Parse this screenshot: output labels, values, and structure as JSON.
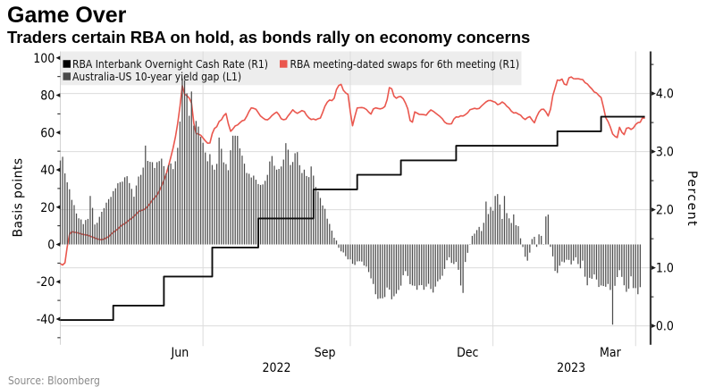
{
  "header": {
    "title": "Game Over",
    "subtitle": "Traders certain RBA on hold, as bonds rally on economy concerns"
  },
  "legend": {
    "items": [
      {
        "label": "RBA Interbank Overnight Cash Rate (R1)",
        "color": "#000000",
        "marker": "square"
      },
      {
        "label": "RBA meeting-dated swaps for 6th meeting (R1)",
        "color": "#ea574e",
        "marker": "square"
      },
      {
        "label": "Australia-US 10-year yield gap (L1)",
        "color": "#4a4a4a",
        "marker": "square"
      }
    ]
  },
  "source_note": "Source: Bloomberg",
  "chart_data": {
    "type": "mixed",
    "title": "Game Over",
    "subtitle": "Traders certain RBA on hold, as bonds rally on economy concerns",
    "x": {
      "dates": [
        "2022-04-01",
        "2022-04-04",
        "2022-04-05",
        "2022-04-06",
        "2022-04-07",
        "2022-04-08",
        "2022-04-11",
        "2022-04-12",
        "2022-04-13",
        "2022-04-14",
        "2022-04-15",
        "2022-04-18",
        "2022-04-19",
        "2022-04-20",
        "2022-04-21",
        "2022-04-22",
        "2022-04-25",
        "2022-04-26",
        "2022-04-27",
        "2022-04-28",
        "2022-04-29",
        "2022-05-02",
        "2022-05-03",
        "2022-05-04",
        "2022-05-05",
        "2022-05-06",
        "2022-05-09",
        "2022-05-10",
        "2022-05-11",
        "2022-05-12",
        "2022-05-13",
        "2022-05-16",
        "2022-05-17",
        "2022-05-18",
        "2022-05-19",
        "2022-05-20",
        "2022-05-23",
        "2022-05-24",
        "2022-05-25",
        "2022-05-26",
        "2022-05-27",
        "2022-05-30",
        "2022-05-31",
        "2022-06-01",
        "2022-06-02",
        "2022-06-03",
        "2022-06-06",
        "2022-06-07",
        "2022-06-08",
        "2022-06-09",
        "2022-06-10",
        "2022-06-13",
        "2022-06-14",
        "2022-06-15",
        "2022-06-16",
        "2022-06-17",
        "2022-06-20",
        "2022-06-21",
        "2022-06-22",
        "2022-06-23",
        "2022-06-24",
        "2022-06-27",
        "2022-06-28",
        "2022-06-29",
        "2022-06-30",
        "2022-07-01",
        "2022-07-04",
        "2022-07-05",
        "2022-07-06",
        "2022-07-07",
        "2022-07-08",
        "2022-07-11",
        "2022-07-12",
        "2022-07-13",
        "2022-07-14",
        "2022-07-15",
        "2022-07-18",
        "2022-07-19",
        "2022-07-20",
        "2022-07-21",
        "2022-07-22",
        "2022-07-25",
        "2022-07-26",
        "2022-07-27",
        "2022-07-28",
        "2022-07-29",
        "2022-08-01",
        "2022-08-02",
        "2022-08-03",
        "2022-08-04",
        "2022-08-05",
        "2022-08-08",
        "2022-08-09",
        "2022-08-10",
        "2022-08-11",
        "2022-08-12",
        "2022-08-15",
        "2022-08-16",
        "2022-08-17",
        "2022-08-18",
        "2022-08-19",
        "2022-08-22",
        "2022-08-23",
        "2022-08-24",
        "2022-08-25",
        "2022-08-26",
        "2022-08-29",
        "2022-08-30",
        "2022-08-31",
        "2022-09-01",
        "2022-09-02",
        "2022-09-05",
        "2022-09-06",
        "2022-09-07",
        "2022-09-08",
        "2022-09-09",
        "2022-09-12",
        "2022-09-13",
        "2022-09-14",
        "2022-09-15",
        "2022-09-16",
        "2022-09-19",
        "2022-09-20",
        "2022-09-21",
        "2022-09-22",
        "2022-09-23",
        "2022-09-26",
        "2022-09-27",
        "2022-09-28",
        "2022-09-29",
        "2022-09-30",
        "2022-10-03",
        "2022-10-04",
        "2022-10-05",
        "2022-10-06",
        "2022-10-07",
        "2022-10-10",
        "2022-10-11",
        "2022-10-12",
        "2022-10-13",
        "2022-10-14",
        "2022-10-17",
        "2022-10-18",
        "2022-10-19",
        "2022-10-20",
        "2022-10-21",
        "2022-10-24",
        "2022-10-25",
        "2022-10-26",
        "2022-10-27",
        "2022-10-28",
        "2022-10-31",
        "2022-11-01",
        "2022-11-02",
        "2022-11-03",
        "2022-11-04",
        "2022-11-07",
        "2022-11-08",
        "2022-11-09",
        "2022-11-10",
        "2022-11-11",
        "2022-11-14",
        "2022-11-15",
        "2022-11-16",
        "2022-11-17",
        "2022-11-18",
        "2022-11-21",
        "2022-11-22",
        "2022-11-23",
        "2022-11-24",
        "2022-11-25",
        "2022-11-28",
        "2022-11-29",
        "2022-11-30",
        "2022-12-01",
        "2022-12-02",
        "2022-12-05",
        "2022-12-06",
        "2022-12-07",
        "2022-12-08",
        "2022-12-09",
        "2022-12-12",
        "2022-12-13",
        "2022-12-14",
        "2022-12-15",
        "2022-12-16",
        "2022-12-19",
        "2022-12-20",
        "2022-12-21",
        "2022-12-22",
        "2022-12-23",
        "2022-12-26",
        "2022-12-27",
        "2022-12-28",
        "2022-12-29",
        "2022-12-30",
        "2023-01-02",
        "2023-01-03",
        "2023-01-04",
        "2023-01-05",
        "2023-01-06",
        "2023-01-09",
        "2023-01-10",
        "2023-01-11",
        "2023-01-12",
        "2023-01-13",
        "2023-01-16",
        "2023-01-17",
        "2023-01-18",
        "2023-01-19",
        "2023-01-20",
        "2023-01-23",
        "2023-01-24",
        "2023-01-25",
        "2023-01-26",
        "2023-01-27",
        "2023-01-30",
        "2023-01-31",
        "2023-02-01",
        "2023-02-02",
        "2023-02-03",
        "2023-02-06",
        "2023-02-07",
        "2023-02-08",
        "2023-02-09",
        "2023-02-10",
        "2023-02-13",
        "2023-02-14",
        "2023-02-15",
        "2023-02-16",
        "2023-02-17",
        "2023-02-20",
        "2023-02-21",
        "2023-02-22",
        "2023-02-23",
        "2023-02-24",
        "2023-02-27",
        "2023-02-28",
        "2023-03-01",
        "2023-03-02",
        "2023-03-03",
        "2023-03-06",
        "2023-03-07",
        "2023-03-08",
        "2023-03-09",
        "2023-03-10",
        "2023-03-13",
        "2023-03-14",
        "2023-03-15",
        "2023-03-16",
        "2023-03-17",
        "2023-03-20",
        "2023-03-21",
        "2023-03-22",
        "2023-03-23"
      ],
      "month_ticks": [
        {
          "label": "Jun",
          "index": 52
        },
        {
          "label": "Sep",
          "index": 115
        },
        {
          "label": "Dec",
          "index": 177
        },
        {
          "label": "Mar",
          "index": 239
        }
      ],
      "quarter_gridlines": [
        62,
        126,
        188,
        250
      ],
      "year_labels": [
        {
          "label": "2022",
          "index": 94
        },
        {
          "label": "2023",
          "index": 222
        }
      ]
    },
    "axis_left": {
      "title": "Basis points",
      "unit": "bps",
      "major_ticks": [
        100,
        80,
        60,
        40,
        20,
        0,
        -20,
        -40
      ],
      "minor_ticks": [
        90,
        70,
        50,
        30,
        10,
        -10,
        -30,
        -50
      ],
      "grid": false
    },
    "axis_right": {
      "title": "Percent",
      "unit": "%",
      "major_ticks": [
        4.0,
        3.0,
        2.0,
        1.0,
        0.0
      ],
      "tick_labels": [
        "4.0",
        "3.0",
        "2.0",
        "1.0",
        "0.0"
      ],
      "minor_ticks": [
        4.5,
        3.5,
        2.5,
        1.5,
        0.5
      ],
      "grid": true
    },
    "series": [
      {
        "name": "RBA Interbank Overnight Cash Rate (R1)",
        "type": "step-line",
        "axis": "right",
        "color": "#0d0d0d",
        "points": [
          {
            "date": "2022-04-01",
            "index": 0,
            "value": 0.1
          },
          {
            "date": "2022-05-04",
            "index": 23,
            "value": 0.35
          },
          {
            "date": "2022-06-08",
            "index": 45,
            "value": 0.85
          },
          {
            "date": "2022-07-06",
            "index": 66,
            "value": 1.35
          },
          {
            "date": "2022-08-03",
            "index": 86,
            "value": 1.85
          },
          {
            "date": "2022-09-07",
            "index": 110,
            "value": 2.35
          },
          {
            "date": "2022-10-05",
            "index": 129,
            "value": 2.6
          },
          {
            "date": "2022-11-02",
            "index": 148,
            "value": 2.85
          },
          {
            "date": "2022-12-07",
            "index": 172,
            "value": 3.1
          },
          {
            "date": "2023-02-08",
            "index": 216,
            "value": 3.35
          },
          {
            "date": "2023-03-08",
            "index": 235,
            "value": 3.6
          }
        ],
        "end_index": 254
      },
      {
        "name": "RBA meeting-dated swaps for 6th meeting (R1)",
        "type": "line",
        "axis": "right",
        "color": "#ea574e",
        "values": [
          1.07,
          1.048,
          1.086,
          1.361,
          1.577,
          1.622,
          1.611,
          1.607,
          1.596,
          1.583,
          1.572,
          1.567,
          1.558,
          1.544,
          1.529,
          1.514,
          1.497,
          1.487,
          1.482,
          1.495,
          1.515,
          1.535,
          1.576,
          1.609,
          1.639,
          1.668,
          1.708,
          1.74,
          1.76,
          1.792,
          1.826,
          1.851,
          1.884,
          1.925,
          1.967,
          1.985,
          1.996,
          2.019,
          2.059,
          2.108,
          2.163,
          2.206,
          2.253,
          2.323,
          2.407,
          2.503,
          2.612,
          2.747,
          2.902,
          3.062,
          3.252,
          3.482,
          3.779,
          4.136,
          3.987,
          3.962,
          3.922,
          3.835,
          3.487,
          3.312,
          3.303,
          3.282,
          3.234,
          3.185,
          3.145,
          3.147,
          3.31,
          3.399,
          3.43,
          3.519,
          3.548,
          3.617,
          3.655,
          3.478,
          3.35,
          3.389,
          3.441,
          3.458,
          3.495,
          3.53,
          3.542,
          3.607,
          3.689,
          3.753,
          3.745,
          3.73,
          3.669,
          3.612,
          3.58,
          3.553,
          3.546,
          3.577,
          3.621,
          3.654,
          3.68,
          3.635,
          3.564,
          3.548,
          3.558,
          3.615,
          3.664,
          3.72,
          3.682,
          3.658,
          3.681,
          3.706,
          3.691,
          3.626,
          3.582,
          3.553,
          3.562,
          3.546,
          3.566,
          3.577,
          3.676,
          3.78,
          3.851,
          3.888,
          3.877,
          3.917,
          4.068,
          4.138,
          4.157,
          4.055,
          4.011,
          3.984,
          3.683,
          3.444,
          3.606,
          3.751,
          3.756,
          3.758,
          3.749,
          3.725,
          3.679,
          3.645,
          3.732,
          3.753,
          3.743,
          3.735,
          3.746,
          3.776,
          3.894,
          4.101,
          4.081,
          3.954,
          3.918,
          3.943,
          3.946,
          3.909,
          3.832,
          3.736,
          3.536,
          3.506,
          3.683,
          3.663,
          3.64,
          3.639,
          3.636,
          3.626,
          3.678,
          3.717,
          3.695,
          3.665,
          3.634,
          3.603,
          3.565,
          3.508,
          3.481,
          3.476,
          3.48,
          3.559,
          3.597,
          3.594,
          3.615,
          3.613,
          3.635,
          3.667,
          3.72,
          3.732,
          3.745,
          3.735,
          3.743,
          3.783,
          3.82,
          3.855,
          3.878,
          3.88,
          3.863,
          3.85,
          3.807,
          3.822,
          3.854,
          3.828,
          3.782,
          3.749,
          3.696,
          3.664,
          3.669,
          3.646,
          3.628,
          3.58,
          3.553,
          3.585,
          3.601,
          3.545,
          3.495,
          3.599,
          3.68,
          3.726,
          3.729,
          3.685,
          3.612,
          3.73,
          3.964,
          4.092,
          4.232,
          4.224,
          4.247,
          4.162,
          4.148,
          4.269,
          4.285,
          4.255,
          4.252,
          4.255,
          4.244,
          4.24,
          4.188,
          4.164,
          4.117,
          4.079,
          4.026,
          4.009,
          3.964,
          3.931,
          3.767,
          3.584,
          3.517,
          3.425,
          3.305,
          3.263,
          3.242,
          3.419,
          3.334,
          3.293,
          3.402,
          3.411,
          3.381,
          3.406,
          3.466,
          3.498,
          3.505,
          3.582,
          3.573
        ]
      },
      {
        "name": "Australia-US 10-year yield gap (L1)",
        "type": "bar",
        "axis": "left",
        "color": "#4d4d4d",
        "values": [
          45.0,
          47.0,
          38.1,
          33.3,
          29.6,
          23.9,
          21.1,
          16.6,
          14.0,
          13.4,
          10.9,
          13.1,
          13.7,
          26.0,
          19.6,
          10.7,
          11.6,
          14.8,
          17.5,
          19.5,
          22.4,
          24.3,
          25.5,
          28.6,
          30.1,
          32.8,
          33.4,
          33.7,
          36.0,
          36.6,
          32.9,
          29.8,
          25.6,
          31.6,
          36.4,
          37.3,
          41.2,
          53.0,
          44.8,
          44.3,
          44.1,
          41.0,
          44.1,
          44.7,
          46.0,
          42.0,
          38.1,
          42.5,
          43.4,
          40.4,
          44.6,
          51.8,
          65.9,
          89.0,
          88.0,
          81.0,
          69.0,
          82.0,
          63.7,
          66.2,
          63.2,
          57.7,
          54.5,
          49.3,
          44.6,
          48.4,
          42.6,
          40.1,
          43.2,
          57.3,
          51.3,
          44.0,
          43.1,
          39.8,
          50.5,
          58.3,
          58.3,
          58.2,
          51.5,
          47.6,
          43.3,
          38.3,
          37.9,
          35.9,
          36.9,
          34.7,
          32.4,
          31.9,
          32.2,
          34.1,
          37.3,
          44.5,
          47.4,
          42.2,
          40.1,
          40.5,
          41.8,
          45.5,
          54.3,
          50.8,
          42.6,
          44.2,
          48.9,
          49.5,
          42.5,
          38.3,
          40.1,
          36.7,
          36.1,
          41.8,
          36.9,
          30.8,
          28.4,
          24.9,
          20.9,
          19.1,
          13.8,
          11.0,
          7.4,
          3.6,
          2.1,
          -1.8,
          -3.7,
          -4.3,
          -6.3,
          -8.0,
          -8.0,
          -10.4,
          -11.0,
          -9.1,
          -9.0,
          -9.2,
          -11.3,
          -11.9,
          -14.8,
          -18.2,
          -21.2,
          -26.7,
          -29.2,
          -28.9,
          -28.9,
          -28.2,
          -23.1,
          -24.2,
          -29.4,
          -27.8,
          -26.4,
          -24.4,
          -22.1,
          -16.5,
          -14.3,
          -16.9,
          -21.3,
          -22.0,
          -22.2,
          -24.3,
          -21.9,
          -21.8,
          -24.3,
          -22.6,
          -21.1,
          -23.9,
          -25.8,
          -22.6,
          -19.8,
          -18.7,
          -16.8,
          -13.1,
          -8.5,
          -6.9,
          -9.9,
          -10.5,
          -9.4,
          -13.6,
          -22.0,
          -26.0,
          -9.4,
          -4.5,
          0.2,
          4.6,
          5.8,
          7.7,
          9.4,
          7.2,
          11.6,
          23.0,
          16.3,
          20.1,
          18.1,
          26.0,
          27.0,
          21.4,
          13.7,
          26.0,
          16.8,
          14.0,
          11.5,
          16.1,
          10.3,
          9.8,
          3.3,
          -1.4,
          -6.6,
          -8.7,
          -4.4,
          2.9,
          4.1,
          -1.3,
          5.4,
          4.6,
          -0.2,
          15.0,
          16.0,
          -1.3,
          -6.4,
          -14.2,
          -15.3,
          -11.4,
          -9.2,
          -9.6,
          -8.2,
          -8.3,
          -10.7,
          -8.7,
          -6.9,
          -10.5,
          -12.8,
          -8.7,
          -17.3,
          -21.9,
          -17.9,
          -18.4,
          -16.1,
          -18.8,
          -22.8,
          -22.0,
          -22.3,
          -22.7,
          -21.2,
          -24.4,
          -43.0,
          -22.2,
          -17.5,
          -13.8,
          -17.4,
          -21.9,
          -25.4,
          -23.7,
          -17.1,
          -23.4,
          -23.4,
          -26.7,
          -22.9
        ]
      }
    ]
  }
}
